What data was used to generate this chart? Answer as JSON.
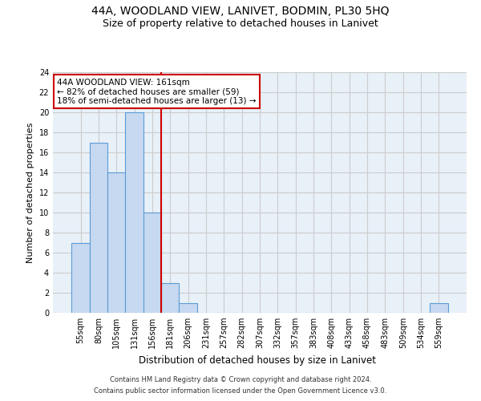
{
  "title_line1": "44A, WOODLAND VIEW, LANIVET, BODMIN, PL30 5HQ",
  "title_line2": "Size of property relative to detached houses in Lanivet",
  "xlabel": "Distribution of detached houses by size in Lanivet",
  "ylabel": "Number of detached properties",
  "categories": [
    "55sqm",
    "80sqm",
    "105sqm",
    "131sqm",
    "156sqm",
    "181sqm",
    "206sqm",
    "231sqm",
    "257sqm",
    "282sqm",
    "307sqm",
    "332sqm",
    "357sqm",
    "383sqm",
    "408sqm",
    "433sqm",
    "458sqm",
    "483sqm",
    "509sqm",
    "534sqm",
    "559sqm"
  ],
  "values": [
    7,
    17,
    14,
    20,
    10,
    3,
    1,
    0,
    0,
    0,
    0,
    0,
    0,
    0,
    0,
    0,
    0,
    0,
    0,
    0,
    1
  ],
  "bar_color": "#c6d9f0",
  "bar_edge_color": "#5b9bd5",
  "bar_edge_width": 0.8,
  "red_line_x": 4.5,
  "red_line_color": "#cc0000",
  "annotation_text": "44A WOODLAND VIEW: 161sqm\n← 82% of detached houses are smaller (59)\n18% of semi-detached houses are larger (13) →",
  "annotation_box_color": "#ffffff",
  "annotation_box_edge": "#cc0000",
  "ylim": [
    0,
    24
  ],
  "yticks": [
    0,
    2,
    4,
    6,
    8,
    10,
    12,
    14,
    16,
    18,
    20,
    22,
    24
  ],
  "grid_color": "#cccccc",
  "background_color": "#e8f0f8",
  "footer_line1": "Contains HM Land Registry data © Crown copyright and database right 2024.",
  "footer_line2": "Contains public sector information licensed under the Open Government Licence v3.0.",
  "title_fontsize": 10,
  "subtitle_fontsize": 9,
  "tick_fontsize": 7,
  "ylabel_fontsize": 8,
  "xlabel_fontsize": 8.5,
  "annotation_fontsize": 7.5,
  "footer_fontsize": 6
}
